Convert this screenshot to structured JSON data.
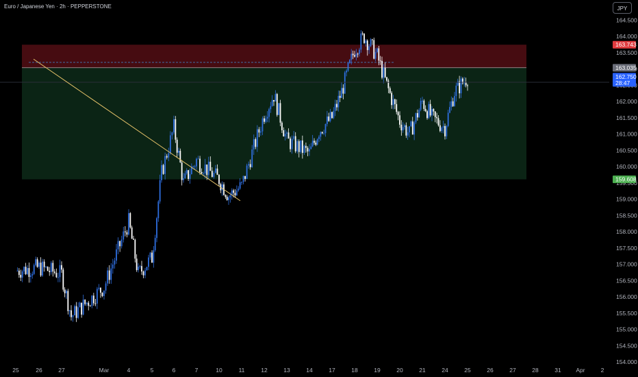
{
  "header": {
    "title": "Euro / Japanese Yen · 2h · PEPPERSTONE",
    "currency_button": "JPY"
  },
  "colors": {
    "background": "#000000",
    "candle_up": "#2f6fe0",
    "candle_down": "#ffffff",
    "trendline": "#e8c46a",
    "stop_zone": "#4a0d12",
    "target_zone": "#0c2616",
    "stop_tag": "#e03a3e",
    "last_price_tag": "#2962ff",
    "entry_tag": "#6a6d78",
    "target_tag": "#4caf50"
  },
  "chart_data": {
    "type": "candlestick",
    "symbol": "EUR/JPY",
    "timeframe": "2h",
    "y_axis": {
      "min": 154,
      "max": 164.8,
      "ticks": [
        "154.000",
        "154.500",
        "155.000",
        "155.500",
        "156.000",
        "156.500",
        "157.000",
        "157.500",
        "158.000",
        "158.500",
        "159.000",
        "159.500",
        "160.000",
        "160.500",
        "161.000",
        "161.500",
        "162.000",
        "162.500",
        "163.000",
        "163.500",
        "164.000",
        "164.500"
      ]
    },
    "x_axis": {
      "labels": [
        "25",
        "26",
        "27",
        "Mar",
        "4",
        "5",
        "6",
        "7",
        "10",
        "11",
        "12",
        "13",
        "14",
        "17",
        "18",
        "19",
        "20",
        "21",
        "24",
        "25",
        "26",
        "27",
        "28",
        "31",
        "Apr",
        "2"
      ]
    },
    "price_path": [
      [
        "25",
        156.8
      ],
      [
        "26",
        156.9
      ],
      [
        "27",
        156.7
      ],
      [
        "27",
        155.4
      ],
      [
        "Mar",
        156.3
      ],
      [
        "4",
        158.3
      ],
      [
        "4",
        156.7
      ],
      [
        "5",
        157.2
      ],
      [
        "5",
        159.8
      ],
      [
        "6",
        161.2
      ],
      [
        "6",
        159.5
      ],
      [
        "7",
        160.2
      ],
      [
        "10",
        159.6
      ],
      [
        "10",
        159.1
      ],
      [
        "11",
        159.4
      ],
      [
        "12",
        161.6
      ],
      [
        "12",
        162.2
      ],
      [
        "13",
        160.8
      ],
      [
        "14",
        160.4
      ],
      [
        "14",
        161.1
      ],
      [
        "17",
        161.5
      ],
      [
        "17",
        162.3
      ],
      [
        "18",
        163.6
      ],
      [
        "18",
        164.0
      ],
      [
        "19",
        163.4
      ],
      [
        "19",
        162.5
      ],
      [
        "20",
        161.4
      ],
      [
        "20",
        161.0
      ],
      [
        "21",
        162.0
      ],
      [
        "21",
        161.5
      ],
      [
        "24",
        161.2
      ],
      [
        "24",
        162.3
      ],
      [
        "25",
        162.75
      ]
    ],
    "trendline": {
      "from": {
        "x": "11",
        "y": 158.95
      },
      "to": {
        "x": "26",
        "y": 163.3
      }
    },
    "position": {
      "entry": 163.035,
      "stop": 163.743,
      "target": 159.608,
      "start": "26",
      "end": "28"
    },
    "price_tags": [
      {
        "name": "stop",
        "value": 163.743,
        "label": "163.743",
        "color": "#e03a3e"
      },
      {
        "name": "entry",
        "value": 163.035,
        "label": "163.035",
        "color": "#6a6d78"
      },
      {
        "name": "last-price",
        "value": 162.75,
        "label": "162.750",
        "sublabel": "28:47",
        "color": "#2962ff"
      },
      {
        "name": "target",
        "value": 159.608,
        "label": "159.608",
        "color": "#4caf50"
      }
    ]
  }
}
